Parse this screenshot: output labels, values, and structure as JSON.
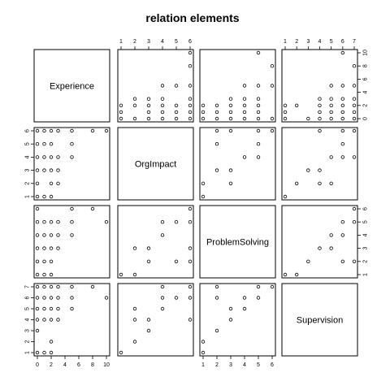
{
  "chart_data": {
    "type": "scatter",
    "title": "relation  elements",
    "variables": [
      "Experience",
      "OrgImpact",
      "ProblemSolving",
      "Supervision"
    ],
    "axes": {
      "Experience": {
        "lim": [
          0,
          10
        ],
        "ticks": [
          0,
          2,
          4,
          6,
          8,
          10
        ]
      },
      "OrgImpact": {
        "lim": [
          1,
          6
        ],
        "ticks": [
          1,
          2,
          3,
          4,
          5,
          6
        ]
      },
      "ProblemSolving": {
        "lim": [
          1,
          6
        ],
        "ticks": [
          1,
          2,
          3,
          4,
          5,
          6
        ]
      },
      "Supervision": {
        "lim": [
          1,
          7
        ],
        "ticks": [
          1,
          2,
          3,
          4,
          5,
          6,
          7
        ]
      }
    },
    "observations": [
      {
        "Experience": 0,
        "OrgImpact": 1,
        "ProblemSolving": 1,
        "Supervision": 1
      },
      {
        "Experience": 0,
        "OrgImpact": 3,
        "ProblemSolving": 2,
        "Supervision": 3
      },
      {
        "Experience": 0,
        "OrgImpact": 6,
        "ProblemSolving": 6,
        "Supervision": 7
      },
      {
        "Experience": 0,
        "OrgImpact": 4,
        "ProblemSolving": 4,
        "Supervision": 5
      },
      {
        "Experience": 0,
        "OrgImpact": 5,
        "ProblemSolving": 5,
        "Supervision": 6
      },
      {
        "Experience": 0,
        "OrgImpact": 2,
        "ProblemSolving": 3,
        "Supervision": 4
      },
      {
        "Experience": 1,
        "OrgImpact": 1,
        "ProblemSolving": 1,
        "Supervision": 1
      },
      {
        "Experience": 1,
        "OrgImpact": 3,
        "ProblemSolving": 3,
        "Supervision": 4
      },
      {
        "Experience": 1,
        "OrgImpact": 4,
        "ProblemSolving": 4,
        "Supervision": 5
      },
      {
        "Experience": 1,
        "OrgImpact": 5,
        "ProblemSolving": 2,
        "Supervision": 6
      },
      {
        "Experience": 1,
        "OrgImpact": 6,
        "ProblemSolving": 3,
        "Supervision": 4
      },
      {
        "Experience": 1,
        "OrgImpact": 4,
        "ProblemSolving": 5,
        "Supervision": 7
      },
      {
        "Experience": 2,
        "OrgImpact": 2,
        "ProblemSolving": 1,
        "Supervision": 2
      },
      {
        "Experience": 2,
        "OrgImpact": 3,
        "ProblemSolving": 3,
        "Supervision": 4
      },
      {
        "Experience": 2,
        "OrgImpact": 4,
        "ProblemSolving": 4,
        "Supervision": 5
      },
      {
        "Experience": 2,
        "OrgImpact": 5,
        "ProblemSolving": 5,
        "Supervision": 6
      },
      {
        "Experience": 2,
        "OrgImpact": 6,
        "ProblemSolving": 2,
        "Supervision": 7
      },
      {
        "Experience": 2,
        "OrgImpact": 1,
        "ProblemSolving": 1,
        "Supervision": 1
      },
      {
        "Experience": 3,
        "OrgImpact": 2,
        "ProblemSolving": 3,
        "Supervision": 5
      },
      {
        "Experience": 3,
        "OrgImpact": 4,
        "ProblemSolving": 4,
        "Supervision": 6
      },
      {
        "Experience": 3,
        "OrgImpact": 6,
        "ProblemSolving": 5,
        "Supervision": 7
      },
      {
        "Experience": 3,
        "OrgImpact": 3,
        "ProblemSolving": 3,
        "Supervision": 4
      },
      {
        "Experience": 5,
        "OrgImpact": 4,
        "ProblemSolving": 4,
        "Supervision": 5
      },
      {
        "Experience": 5,
        "OrgImpact": 6,
        "ProblemSolving": 6,
        "Supervision": 7
      },
      {
        "Experience": 5,
        "OrgImpact": 5,
        "ProblemSolving": 5,
        "Supervision": 6
      },
      {
        "Experience": 8,
        "OrgImpact": 6,
        "ProblemSolving": 6,
        "Supervision": 7
      },
      {
        "Experience": 10,
        "OrgImpact": 6,
        "ProblemSolving": 5,
        "Supervision": 6
      }
    ]
  }
}
